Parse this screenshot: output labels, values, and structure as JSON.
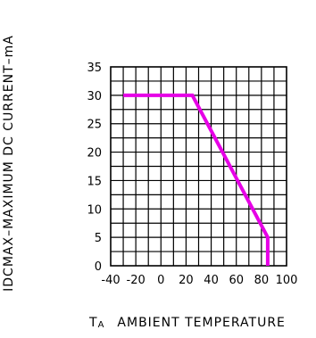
{
  "chart_data": {
    "type": "line",
    "xlabel_prefix": "T",
    "xlabel_subscript": "A",
    "xlabel": "AMBIENT TEMPERATURE",
    "ylabel": "IDCMAX–MAXIMUM DC CURRENT–mA",
    "x_ticks": [
      "-40",
      "-20",
      "0",
      "20",
      "40",
      "60",
      "80",
      "100"
    ],
    "y_ticks": [
      "0",
      "5",
      "10",
      "15",
      "20",
      "25",
      "30",
      "35"
    ],
    "xlim": [
      -40,
      100
    ],
    "ylim": [
      0,
      35
    ],
    "grid": true,
    "series": [
      {
        "x": [
          -30,
          25,
          85,
          85
        ],
        "y": [
          30,
          30,
          5,
          0
        ],
        "color": "#e600e6"
      }
    ]
  }
}
